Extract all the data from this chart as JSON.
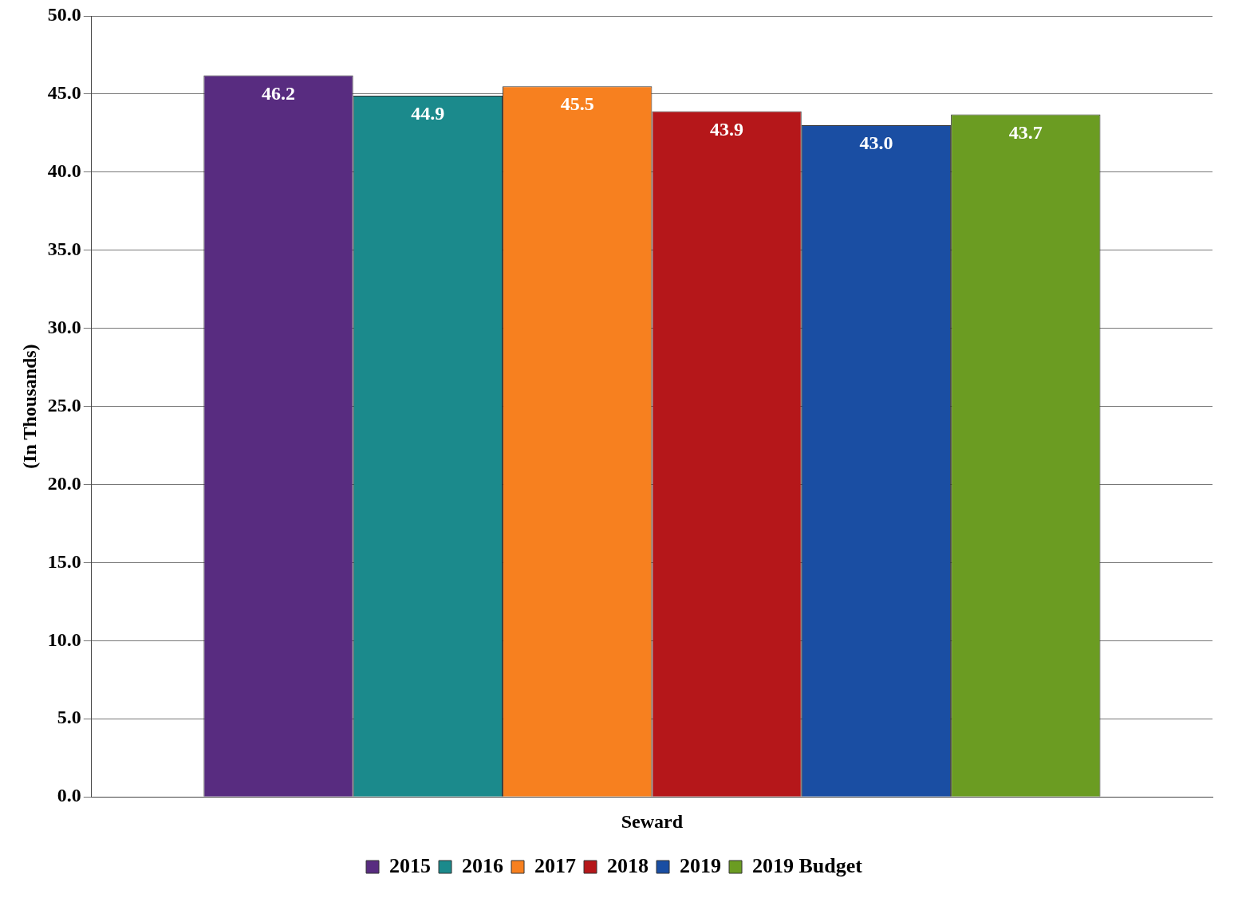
{
  "chart_data": {
    "type": "bar",
    "ylabel": "(In Thousands)",
    "categories": [
      "Seward"
    ],
    "series": [
      {
        "name": "2015",
        "color": "#582c80",
        "values": [
          46.2
        ],
        "value_labels": [
          "46.2"
        ]
      },
      {
        "name": "2016",
        "color": "#1b8a8c",
        "values": [
          44.9
        ],
        "value_labels": [
          "44.9"
        ]
      },
      {
        "name": "2017",
        "color": "#f7801f",
        "values": [
          45.5
        ],
        "value_labels": [
          "45.5"
        ]
      },
      {
        "name": "2018",
        "color": "#b5171a",
        "values": [
          43.9
        ],
        "value_labels": [
          "43.9"
        ]
      },
      {
        "name": "2019",
        "color": "#1a4ea3",
        "values": [
          43.0
        ],
        "value_labels": [
          "43.0"
        ]
      },
      {
        "name": "2019 Budget",
        "color": "#6b9c22",
        "values": [
          43.7
        ],
        "value_labels": [
          "43.7"
        ]
      }
    ],
    "ylim": [
      0,
      50
    ],
    "yticks": [
      {
        "value": 0,
        "label": "0.0"
      },
      {
        "value": 5,
        "label": "5.0"
      },
      {
        "value": 10,
        "label": "10.0"
      },
      {
        "value": 15,
        "label": "15.0"
      },
      {
        "value": 20,
        "label": "20.0"
      },
      {
        "value": 25,
        "label": "25.0"
      },
      {
        "value": 30,
        "label": "30.0"
      },
      {
        "value": 35,
        "label": "35.0"
      },
      {
        "value": 40,
        "label": "40.0"
      },
      {
        "value": 45,
        "label": "45.0"
      },
      {
        "value": 50,
        "label": "50.0"
      }
    ],
    "grid": "y",
    "legend": "bottom"
  }
}
